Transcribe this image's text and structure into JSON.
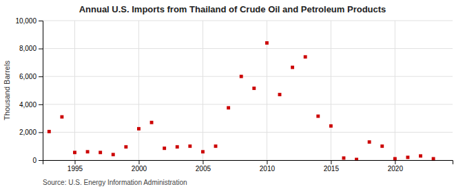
{
  "chart_data": {
    "type": "scatter",
    "title": "Annual U.S. Imports from Thailand of Crude Oil and Petroleum Products",
    "ylabel": "Thousand Barrels",
    "annotations": [
      "Source: U.S. Energy Information Administration"
    ],
    "color": "#cc0000",
    "marker": "square",
    "grid": true,
    "xlim": [
      1992.5,
      2024.5
    ],
    "xticks": [
      1995,
      2000,
      2005,
      2010,
      2015,
      2020
    ],
    "ylim": [
      0,
      10000
    ],
    "yticks": [
      0,
      {
        "value": 2000,
        "label": "2,000"
      },
      {
        "value": 4000,
        "label": "4,000"
      },
      {
        "value": 6000,
        "label": "6,000"
      },
      {
        "value": 8000,
        "label": "8,000"
      },
      {
        "value": 10000,
        "label": "10,000"
      }
    ],
    "x": [
      1993,
      1994,
      1995,
      1996,
      1997,
      1998,
      1999,
      2000,
      2001,
      2002,
      2003,
      2004,
      2005,
      2006,
      2007,
      2008,
      2009,
      2010,
      2011,
      2012,
      2013,
      2014,
      2015,
      2016,
      2017,
      2018,
      2019,
      2020,
      2021,
      2022,
      2023
    ],
    "values": [
      2050,
      3100,
      550,
      600,
      550,
      400,
      950,
      2250,
      2700,
      850,
      950,
      1000,
      600,
      1000,
      3750,
      6000,
      5150,
      8400,
      4700,
      6650,
      7400,
      3150,
      2450,
      150,
      50,
      1300,
      1000,
      100,
      200,
      300,
      100
    ]
  }
}
